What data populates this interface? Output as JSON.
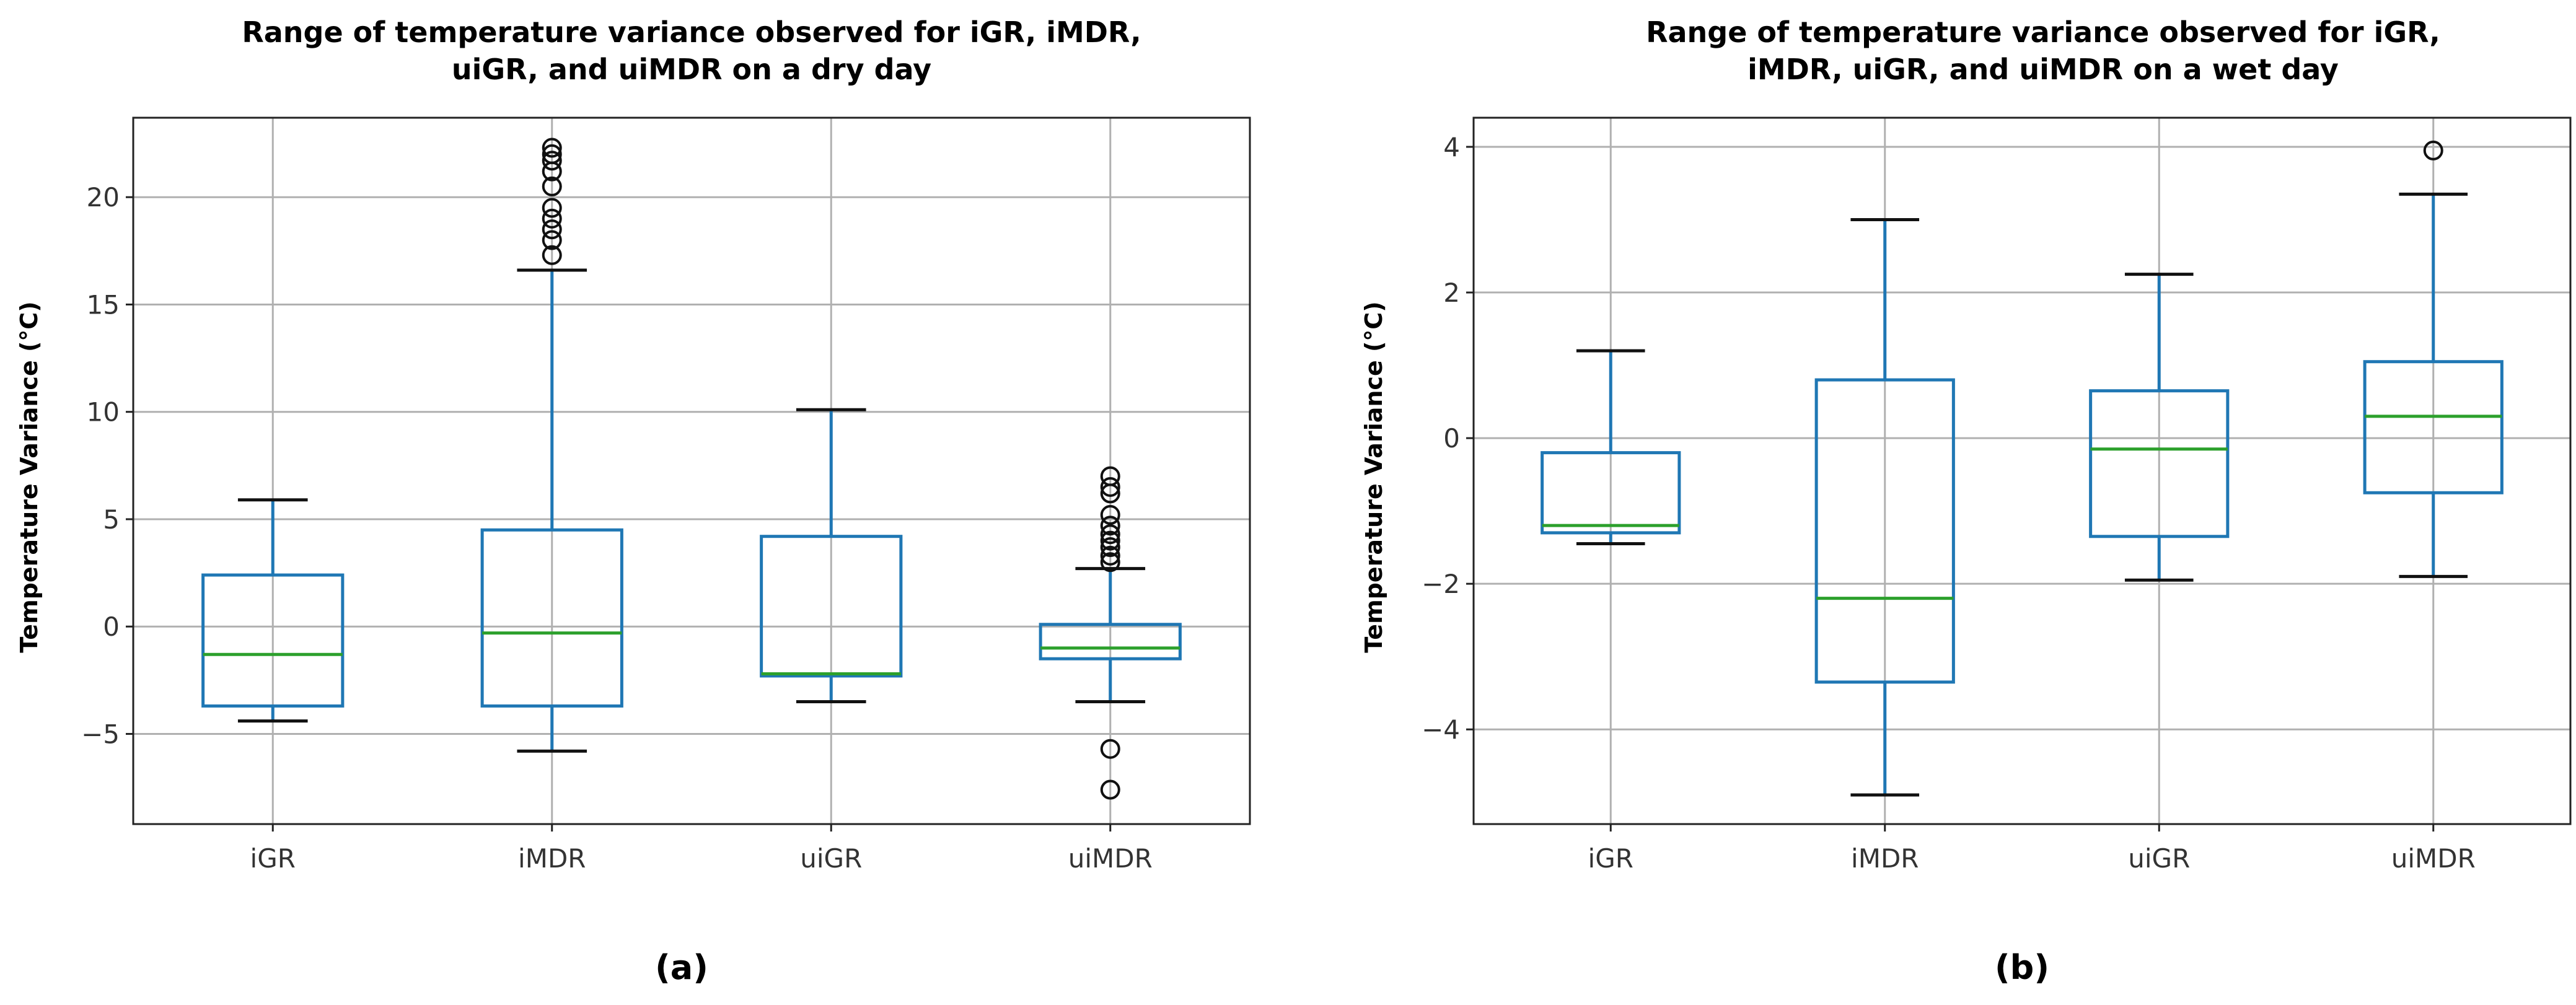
{
  "chart_data": [
    {
      "type": "boxplot",
      "title_lines": [
        "Range of temperature variance observed for iGR, iMDR,",
        "uiGR, and uiMDR on a dry day"
      ],
      "xlabel": "",
      "ylabel": "Temperature Variance (°C)",
      "caption": "(a)",
      "ylim": [
        -9.2,
        23.7
      ],
      "yticks": [
        -5,
        0,
        5,
        10,
        15,
        20
      ],
      "ytick_labels": [
        "−5",
        "0",
        "5",
        "10",
        "15",
        "20"
      ],
      "grid": true,
      "categories": [
        "iGR",
        "iMDR",
        "uiGR",
        "uiMDR"
      ],
      "boxes": [
        {
          "whislo": -4.4,
          "q1": -3.7,
          "med": -1.3,
          "q3": 2.4,
          "whishi": 5.9,
          "fliers": []
        },
        {
          "whislo": -5.8,
          "q1": -3.7,
          "med": -0.3,
          "q3": 4.5,
          "whishi": 16.6,
          "fliers": [
            17.3,
            18.0,
            18.5,
            19.0,
            19.5,
            20.5,
            21.2,
            21.7,
            22.0,
            22.3
          ]
        },
        {
          "whislo": -3.5,
          "q1": -2.3,
          "med": -2.2,
          "q3": 4.2,
          "whishi": 10.1,
          "fliers": []
        },
        {
          "whislo": -3.5,
          "q1": -1.5,
          "med": -1.0,
          "q3": 0.1,
          "whishi": 2.7,
          "fliers": [
            3.0,
            3.3,
            3.7,
            4.0,
            4.3,
            4.7,
            5.2,
            6.2,
            6.5,
            7.0,
            -5.7,
            -7.6
          ]
        }
      ]
    },
    {
      "type": "boxplot",
      "title_lines": [
        "Range of temperature variance observed for iGR,",
        "iMDR, uiGR, and uiMDR on a wet day"
      ],
      "xlabel": "",
      "ylabel": "Temperature Variance (°C)",
      "caption": "(b)",
      "ylim": [
        -5.3,
        4.4
      ],
      "yticks": [
        -4,
        -2,
        0,
        2,
        4
      ],
      "ytick_labels": [
        "−4",
        "−2",
        "0",
        "2",
        "4"
      ],
      "grid": true,
      "categories": [
        "iGR",
        "iMDR",
        "uiGR",
        "uiMDR"
      ],
      "boxes": [
        {
          "whislo": -1.45,
          "q1": -1.3,
          "med": -1.2,
          "q3": -0.2,
          "whishi": 1.2,
          "fliers": []
        },
        {
          "whislo": -4.9,
          "q1": -3.35,
          "med": -2.2,
          "q3": 0.8,
          "whishi": 3.0,
          "fliers": []
        },
        {
          "whislo": -1.95,
          "q1": -1.35,
          "med": -0.15,
          "q3": 0.65,
          "whishi": 2.25,
          "fliers": []
        },
        {
          "whislo": -1.9,
          "q1": -0.75,
          "med": 0.3,
          "q3": 1.05,
          "whishi": 3.35,
          "fliers": [
            3.95
          ]
        }
      ]
    }
  ]
}
